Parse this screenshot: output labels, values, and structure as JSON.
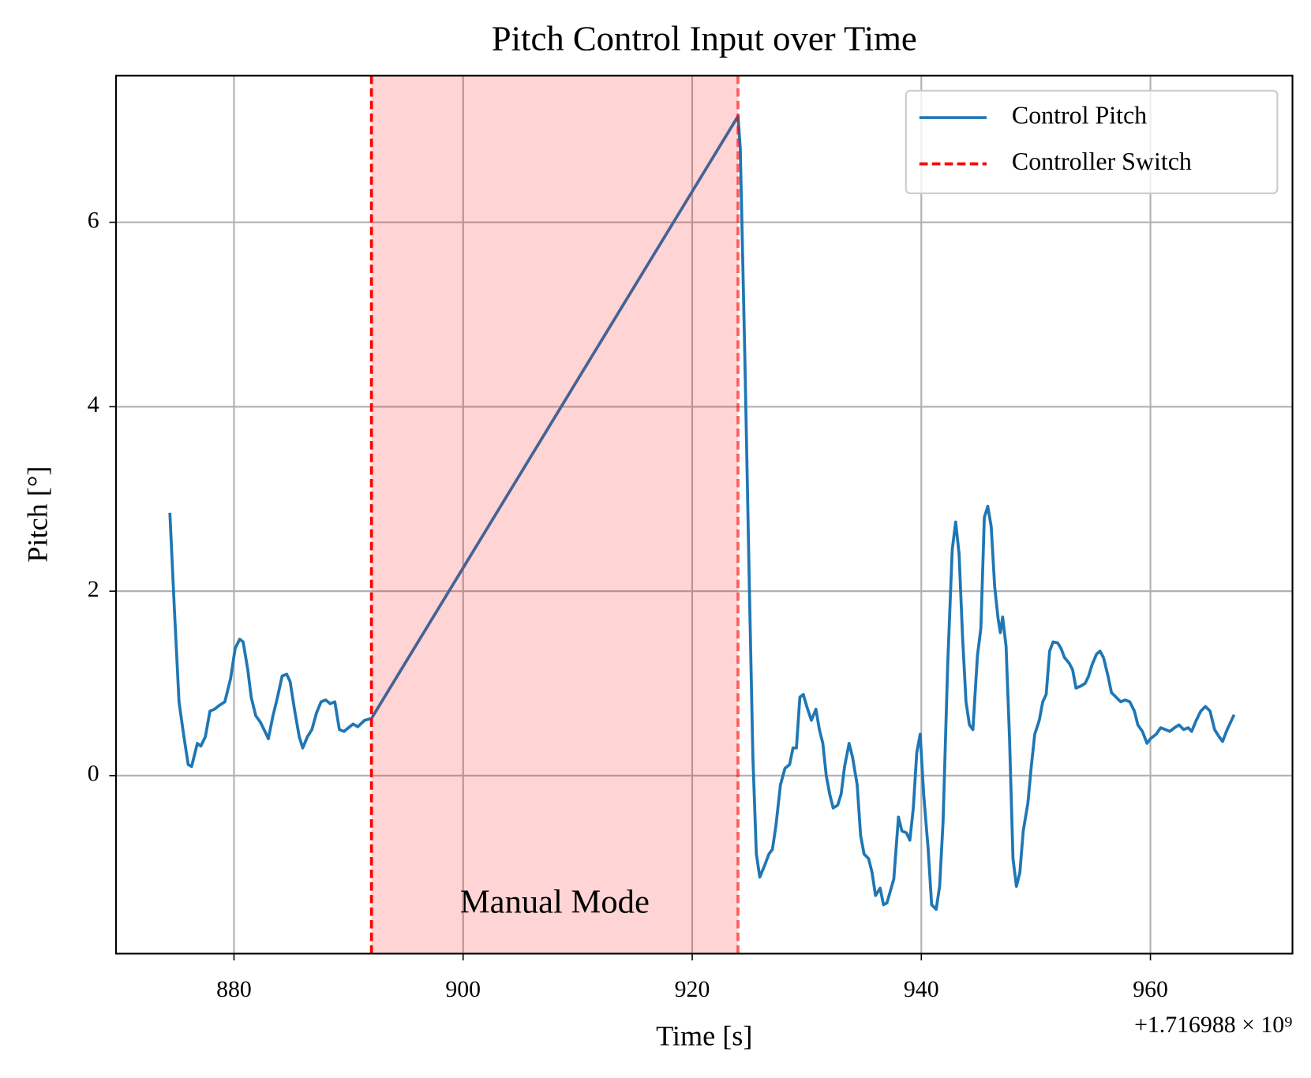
{
  "chart_data": {
    "type": "line",
    "title": "Pitch Control Input over Time",
    "xlabel": "Time [s]",
    "ylabel": "Pitch [°]",
    "x_offset_label": "+1.716988 × 10⁹",
    "xlim": [
      869.7,
      972.4
    ],
    "ylim": [
      -1.93,
      7.59
    ],
    "xticks": [
      880,
      900,
      920,
      940,
      960
    ],
    "yticks": [
      0,
      2,
      4,
      6
    ],
    "grid": true,
    "legend": "upper right",
    "x": [
      874.4,
      874.8,
      875.2,
      875.6,
      876.0,
      876.3,
      876.8,
      877.1,
      877.5,
      877.9,
      878.3,
      878.7,
      879.2,
      879.7,
      880.1,
      880.5,
      880.8,
      881.2,
      881.5,
      881.9,
      882.3,
      882.7,
      883.0,
      883.4,
      883.8,
      884.2,
      884.6,
      884.9,
      885.3,
      885.7,
      886.0,
      886.4,
      886.8,
      887.2,
      887.6,
      888.0,
      888.4,
      888.8,
      889.2,
      889.6,
      890.0,
      890.4,
      890.8,
      891.4,
      892.0,
      924.0,
      924.2,
      924.6,
      925.0,
      925.3,
      925.6,
      925.9,
      926.3,
      926.7,
      927.0,
      927.3,
      927.7,
      928.1,
      928.5,
      928.8,
      929.1,
      929.4,
      929.7,
      930.0,
      930.4,
      930.8,
      931.1,
      931.4,
      931.7,
      932.0,
      932.3,
      932.7,
      933.0,
      933.3,
      933.7,
      934.0,
      934.4,
      934.7,
      935.0,
      935.4,
      935.7,
      936.0,
      936.4,
      936.7,
      937.0,
      937.3,
      937.6,
      938.0,
      938.3,
      938.7,
      939.0,
      939.3,
      939.6,
      939.9,
      940.2,
      940.6,
      940.9,
      941.3,
      941.6,
      941.9,
      942.3,
      942.7,
      943.0,
      943.3,
      943.6,
      943.9,
      944.2,
      944.5,
      944.9,
      945.2,
      945.5,
      945.8,
      946.1,
      946.4,
      946.7,
      946.9,
      947.1,
      947.4,
      947.7,
      948.0,
      948.3,
      948.6,
      948.9,
      949.3,
      949.6,
      949.9,
      950.3,
      950.6,
      950.9,
      951.2,
      951.5,
      951.9,
      952.2,
      952.5,
      952.9,
      953.2,
      953.5,
      953.9,
      954.3,
      954.6,
      954.9,
      955.3,
      955.6,
      955.9,
      956.3,
      956.6,
      957.0,
      957.4,
      957.8,
      958.2,
      958.6,
      958.9,
      959.3,
      959.7,
      960.0,
      960.5,
      960.9,
      961.3,
      961.7,
      962.1,
      962.5,
      962.9,
      963.3,
      963.6,
      964.0,
      964.4,
      964.8,
      965.2,
      965.6,
      966.0,
      966.3,
      966.7,
      967.0,
      967.3
    ],
    "series": [
      {
        "name": "Control Pitch",
        "color": "#1f77b4",
        "values": [
          2.85,
          1.8,
          0.8,
          0.45,
          0.12,
          0.1,
          0.35,
          0.32,
          0.42,
          0.7,
          0.72,
          0.76,
          0.8,
          1.05,
          1.38,
          1.48,
          1.45,
          1.15,
          0.85,
          0.65,
          0.58,
          0.48,
          0.4,
          0.65,
          0.85,
          1.08,
          1.1,
          1.02,
          0.7,
          0.42,
          0.3,
          0.42,
          0.5,
          0.68,
          0.8,
          0.82,
          0.78,
          0.8,
          0.5,
          0.48,
          0.52,
          0.56,
          0.53,
          0.6,
          0.62,
          7.15,
          6.8,
          4.5,
          2.0,
          0.2,
          -0.85,
          -1.1,
          -0.98,
          -0.85,
          -0.8,
          -0.55,
          -0.1,
          0.08,
          0.12,
          0.3,
          0.3,
          0.85,
          0.88,
          0.75,
          0.6,
          0.72,
          0.5,
          0.35,
          0.0,
          -0.2,
          -0.35,
          -0.32,
          -0.2,
          0.1,
          0.35,
          0.2,
          -0.1,
          -0.65,
          -0.85,
          -0.9,
          -1.05,
          -1.3,
          -1.22,
          -1.4,
          -1.38,
          -1.25,
          -1.12,
          -0.45,
          -0.6,
          -0.62,
          -0.7,
          -0.35,
          0.25,
          0.45,
          -0.2,
          -0.8,
          -1.4,
          -1.45,
          -1.2,
          -0.5,
          1.2,
          2.45,
          2.75,
          2.4,
          1.5,
          0.8,
          0.55,
          0.5,
          1.3,
          1.6,
          2.8,
          2.92,
          2.7,
          2.05,
          1.7,
          1.55,
          1.72,
          1.4,
          0.4,
          -0.9,
          -1.2,
          -1.05,
          -0.6,
          -0.3,
          0.1,
          0.45,
          0.6,
          0.8,
          0.88,
          1.35,
          1.45,
          1.44,
          1.38,
          1.28,
          1.22,
          1.15,
          0.95,
          0.97,
          1.0,
          1.08,
          1.2,
          1.32,
          1.35,
          1.28,
          1.08,
          0.9,
          0.85,
          0.8,
          0.82,
          0.8,
          0.7,
          0.55,
          0.48,
          0.35,
          0.4,
          0.45,
          0.52,
          0.5,
          0.48,
          0.52,
          0.55,
          0.5,
          0.52,
          0.48,
          0.6,
          0.7,
          0.75,
          0.7,
          0.5,
          0.42,
          0.37,
          0.5,
          0.58,
          0.66
        ]
      }
    ],
    "vlines": {
      "name": "Controller Switch",
      "color": "#ff0000",
      "x": [
        892,
        924
      ]
    },
    "span": {
      "x": [
        892,
        924
      ],
      "color": "#ff0000"
    },
    "annotation": {
      "text": "Manual Mode",
      "x": 908,
      "y": -1.4
    }
  }
}
